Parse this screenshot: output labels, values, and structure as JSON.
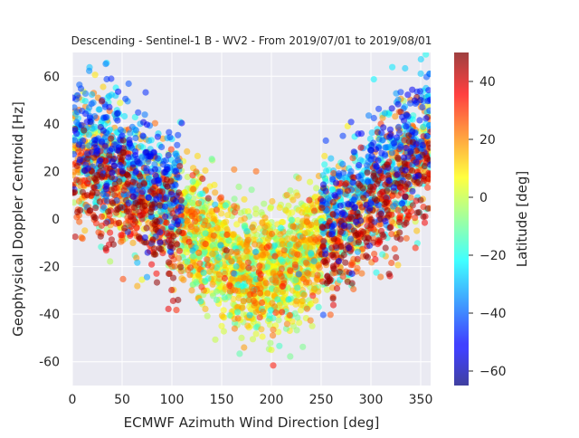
{
  "chart_data": {
    "type": "scatter",
    "title": "Descending - Sentinel-1 B - WV2 - From 2019/07/01 to 2019/08/01",
    "xlabel": "ECMWF Azimuth Wind Direction [deg]",
    "ylabel": "Geophysical Doppler Centroid [Hz]",
    "xlim": [
      0,
      360
    ],
    "ylim": [
      -70,
      70
    ],
    "xticks": [
      0,
      50,
      100,
      150,
      200,
      250,
      300,
      350
    ],
    "yticks": [
      -60,
      -40,
      -20,
      0,
      20,
      40,
      60
    ],
    "grid": true,
    "background": "#eaeaf2",
    "grid_color": "#ffffff",
    "colormap": "jet",
    "color_variable": "Latitude [deg]",
    "colorbar": {
      "label": "Latitude [deg]",
      "range": [
        -65,
        50
      ],
      "ticks": [
        -60,
        -40,
        -20,
        0,
        20,
        40
      ]
    },
    "marker_alpha": 0.55,
    "approx_point_count": 4000,
    "trend_description": "V-shaped cloud: ~25 Hz near 0 deg and ~30 Hz near 350 deg, minimum ~-25 Hz near 170-200 deg",
    "points_sample": [
      {
        "x": 5,
        "y": 45,
        "lat": -40
      },
      {
        "x": 10,
        "y": 30,
        "lat": 35
      },
      {
        "x": 15,
        "y": 10,
        "lat": 45
      },
      {
        "x": 20,
        "y": 38,
        "lat": -30
      },
      {
        "x": 30,
        "y": 50,
        "lat": -45
      },
      {
        "x": 40,
        "y": 20,
        "lat": 40
      },
      {
        "x": 50,
        "y": 35,
        "lat": -50
      },
      {
        "x": 60,
        "y": 5,
        "lat": 30
      },
      {
        "x": 70,
        "y": 0,
        "lat": 38
      },
      {
        "x": 80,
        "y": 15,
        "lat": -35
      },
      {
        "x": 90,
        "y": -5,
        "lat": 25
      },
      {
        "x": 100,
        "y": -20,
        "lat": 20
      },
      {
        "x": 110,
        "y": -25,
        "lat": 15
      },
      {
        "x": 120,
        "y": -30,
        "lat": 18
      },
      {
        "x": 130,
        "y": -35,
        "lat": 12
      },
      {
        "x": 140,
        "y": -20,
        "lat": 22
      },
      {
        "x": 150,
        "y": -45,
        "lat": 5
      },
      {
        "x": 160,
        "y": -30,
        "lat": 2
      },
      {
        "x": 170,
        "y": -50,
        "lat": 0
      },
      {
        "x": 180,
        "y": -25,
        "lat": -5
      },
      {
        "x": 190,
        "y": -40,
        "lat": 3
      },
      {
        "x": 200,
        "y": -55,
        "lat": 4
      },
      {
        "x": 210,
        "y": -20,
        "lat": -10
      },
      {
        "x": 220,
        "y": -35,
        "lat": 6
      },
      {
        "x": 230,
        "y": -10,
        "lat": 8
      },
      {
        "x": 240,
        "y": -15,
        "lat": -20
      },
      {
        "x": 250,
        "y": 5,
        "lat": 25
      },
      {
        "x": 260,
        "y": 10,
        "lat": -30
      },
      {
        "x": 270,
        "y": 15,
        "lat": 35
      },
      {
        "x": 280,
        "y": 20,
        "lat": -40
      },
      {
        "x": 290,
        "y": 30,
        "lat": 40
      },
      {
        "x": 300,
        "y": 25,
        "lat": -45
      },
      {
        "x": 310,
        "y": 40,
        "lat": 30
      },
      {
        "x": 320,
        "y": 35,
        "lat": -50
      },
      {
        "x": 330,
        "y": 45,
        "lat": 45
      },
      {
        "x": 340,
        "y": 28,
        "lat": -35
      },
      {
        "x": 350,
        "y": 50,
        "lat": -55
      },
      {
        "x": 355,
        "y": 20,
        "lat": 20
      }
    ]
  }
}
